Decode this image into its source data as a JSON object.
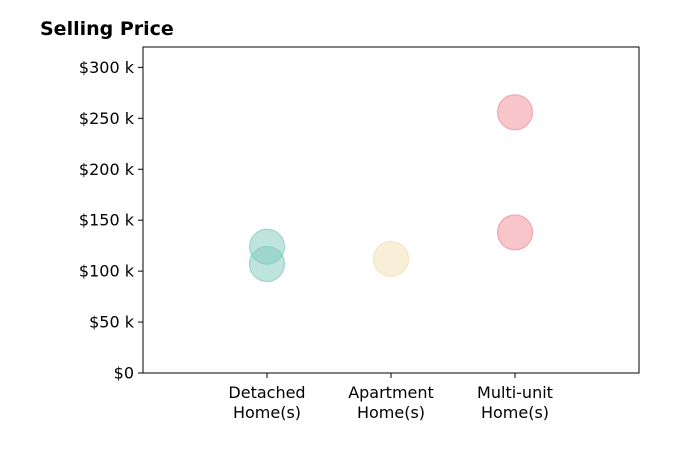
{
  "chart_data": {
    "type": "scatter",
    "title": "Selling Price",
    "xlabel": "",
    "ylabel": "",
    "categories": [
      "Detached\nHome(s)",
      "Apartment\nHome(s)",
      "Multi-unit\nHome(s)"
    ],
    "xlim": [
      -1,
      3
    ],
    "ylim": [
      0,
      320000
    ],
    "yticks": [
      {
        "value": 0,
        "label": "$0"
      },
      {
        "value": 50000,
        "label": "$50 k"
      },
      {
        "value": 100000,
        "label": "$100 k"
      },
      {
        "value": 150000,
        "label": "$150 k"
      },
      {
        "value": 200000,
        "label": "$200 k"
      },
      {
        "value": 250000,
        "label": "$250 k"
      },
      {
        "value": 300000,
        "label": "$300 k"
      }
    ],
    "grid": false,
    "points": [
      {
        "category": 0,
        "value": 124000,
        "color": "#7fc9bd"
      },
      {
        "category": 0,
        "value": 107000,
        "color": "#7fc9bd"
      },
      {
        "category": 1,
        "value": 112000,
        "color": "#f3deb0"
      },
      {
        "category": 2,
        "value": 256000,
        "color": "#f28b95"
      },
      {
        "category": 2,
        "value": 138000,
        "color": "#f28b95"
      }
    ]
  }
}
